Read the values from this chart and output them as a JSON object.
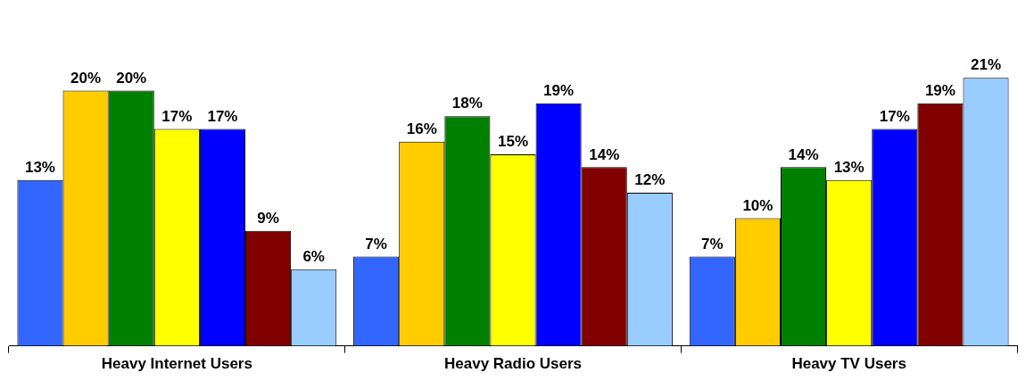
{
  "chart_data": {
    "type": "bar",
    "categories": [
      "Heavy Internet Users",
      "Heavy Radio Users",
      "Heavy TV Users"
    ],
    "series": [
      {
        "color": "#3366ff",
        "values": [
          13,
          7,
          7
        ],
        "value_labels": [
          "13%",
          "7%",
          "7%"
        ]
      },
      {
        "color": "#ffcc00",
        "values": [
          20,
          16,
          10
        ],
        "value_labels": [
          "20%",
          "16%",
          "10%"
        ]
      },
      {
        "color": "#008000",
        "values": [
          20,
          18,
          14
        ],
        "value_labels": [
          "20%",
          "18%",
          "14%"
        ]
      },
      {
        "color": "#ffff00",
        "values": [
          17,
          15,
          13
        ],
        "value_labels": [
          "17%",
          "15%",
          "13%"
        ]
      },
      {
        "color": "#0000ff",
        "values": [
          17,
          19,
          17
        ],
        "value_labels": [
          "17%",
          "19%",
          "17%"
        ]
      },
      {
        "color": "#800000",
        "values": [
          9,
          14,
          19
        ],
        "value_labels": [
          "9%",
          "14%",
          "19%"
        ]
      },
      {
        "color": "#99ccff",
        "values": [
          6,
          12,
          21
        ],
        "value_labels": [
          "6%",
          "12%",
          "21%"
        ]
      }
    ],
    "grid": false,
    "legend": false,
    "tick_labels": "x"
  }
}
